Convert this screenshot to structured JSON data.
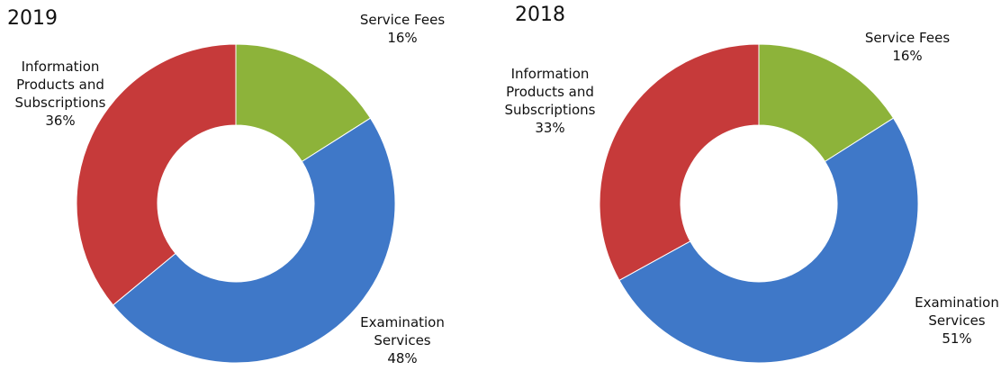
{
  "chart_data": [
    {
      "type": "donut",
      "title": "2019",
      "categories": [
        "Service Fees",
        "Examination Services",
        "Information Products and Subscriptions"
      ],
      "values": [
        16,
        48,
        36
      ],
      "value_labels": [
        "16%",
        "48%",
        "36%"
      ],
      "colors": [
        "#8db33a",
        "#3f78c8",
        "#c63a3a"
      ]
    },
    {
      "type": "donut",
      "title": "2018",
      "categories": [
        "Service Fees",
        "Examination Services",
        "Information Products and Subscriptions"
      ],
      "values": [
        16,
        51,
        33
      ],
      "value_labels": [
        "16%",
        "51%",
        "33%"
      ],
      "colors": [
        "#8db33a",
        "#3f78c8",
        "#c63a3a"
      ]
    }
  ]
}
